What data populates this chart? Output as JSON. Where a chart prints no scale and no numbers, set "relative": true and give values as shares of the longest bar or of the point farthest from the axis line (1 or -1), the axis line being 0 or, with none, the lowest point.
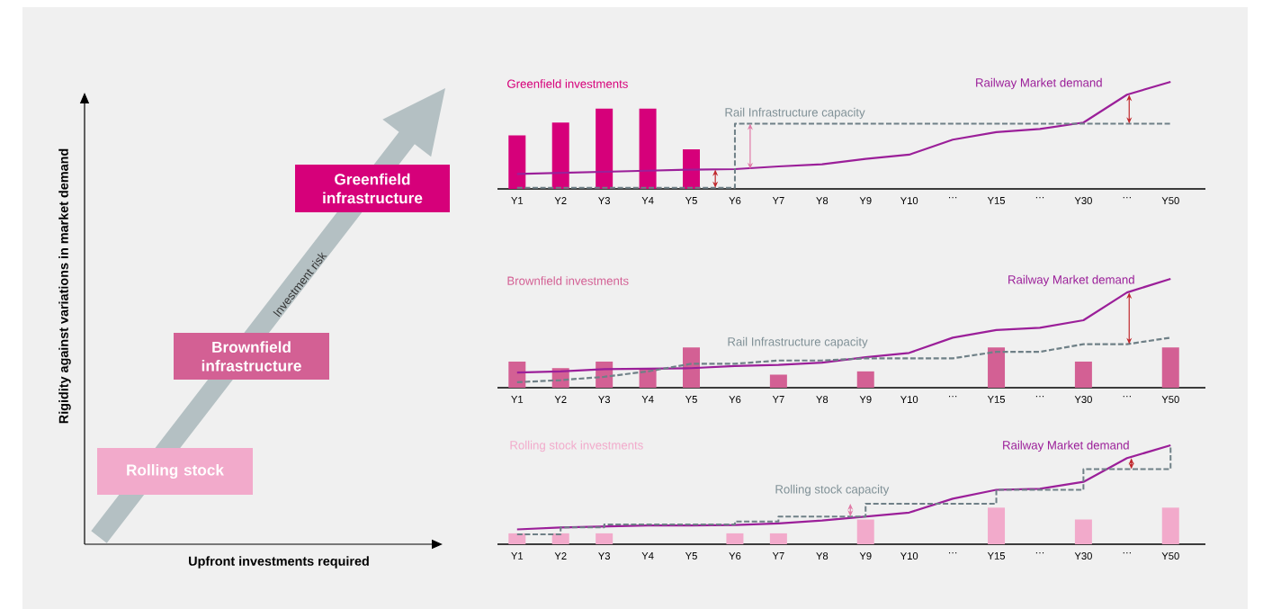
{
  "chart_data": [
    {
      "type": "other",
      "xlabel": "Upfront investments required",
      "ylabel": "Rigidity against variations in market demand",
      "annotations": [
        "Rolling stock",
        "Brownfield infrastructure",
        "Greenfield infrastructure",
        "Investment risk"
      ]
    },
    {
      "type": "bar",
      "relative": true,
      "categories": [
        "Y1",
        "Y2",
        "Y3",
        "Y4",
        "Y5",
        "Y6",
        "Y7",
        "Y8",
        "Y9",
        "Y10",
        "…",
        "Y15",
        "…",
        "Y30",
        "…",
        "Y50"
      ],
      "series": [
        {
          "type": "bar",
          "name": "Greenfield investments",
          "color": "#d6007a",
          "values": [
            0.5,
            0.62,
            0.75,
            0.75,
            0.37,
            null,
            null,
            null,
            null,
            null,
            null,
            null,
            null,
            null,
            null,
            null
          ]
        },
        {
          "type": "line",
          "name": "Railway Market demand",
          "color": "#9b1f99",
          "values": [
            0.14,
            0.15,
            0.16,
            0.17,
            0.18,
            0.185,
            0.21,
            0.23,
            0.28,
            0.32,
            0.46,
            0.53,
            0.56,
            0.62,
            0.88,
            1
          ]
        },
        {
          "type": "step",
          "name": "Rail Infrastructure capacity",
          "color": "#6f8087",
          "line_style": "dashed",
          "values": [
            0.01,
            0.01,
            0.01,
            0.01,
            0.01,
            0.61,
            0.61,
            0.61,
            0.61,
            0.61,
            0.61,
            0.61,
            0.61,
            0.61,
            0.61,
            0.61
          ]
        }
      ]
    },
    {
      "type": "bar",
      "relative": true,
      "categories": [
        "Y1",
        "Y2",
        "Y3",
        "Y4",
        "Y5",
        "Y6",
        "Y7",
        "Y8",
        "Y9",
        "Y10",
        "…",
        "Y15",
        "…",
        "Y30",
        "…",
        "Y50"
      ],
      "series": [
        {
          "type": "bar",
          "name": "Brownfield investments",
          "color": "#d36094",
          "values": [
            0.24,
            0.18,
            0.24,
            0.18,
            0.37,
            null,
            0.12,
            null,
            0.15,
            null,
            null,
            0.37,
            null,
            0.24,
            null,
            0.37
          ]
        },
        {
          "type": "line",
          "name": "Railway Market demand",
          "color": "#9b1f99",
          "values": [
            0.14,
            0.15,
            0.17,
            0.175,
            0.18,
            0.2,
            0.21,
            0.23,
            0.28,
            0.32,
            0.46,
            0.53,
            0.55,
            0.62,
            0.875,
            1
          ]
        },
        {
          "type": "line",
          "name": "Rail Infrastructure capacity",
          "color": "#6f8087",
          "line_style": "dashed",
          "values": [
            0.05,
            0.07,
            0.1,
            0.15,
            0.22,
            0.22,
            0.25,
            0.25,
            0.27,
            0.27,
            0.27,
            0.33,
            0.33,
            0.4,
            0.4,
            0.46
          ]
        }
      ]
    },
    {
      "type": "bar",
      "relative": true,
      "categories": [
        "Y1",
        "Y2",
        "Y3",
        "Y4",
        "Y5",
        "Y6",
        "Y7",
        "Y8",
        "Y9",
        "Y10",
        "…",
        "Y15",
        "…",
        "Y30",
        "…",
        "Y50"
      ],
      "series": [
        {
          "type": "bar",
          "name": "Rolling stock investments",
          "color": "#f2aacb",
          "values": [
            0.11,
            0.11,
            0.11,
            null,
            null,
            0.11,
            0.11,
            null,
            0.25,
            null,
            null,
            0.37,
            null,
            0.25,
            null,
            0.37
          ]
        },
        {
          "type": "line",
          "name": "Railway Market demand",
          "color": "#9b1f99",
          "values": [
            0.15,
            0.17,
            0.18,
            0.19,
            0.19,
            0.195,
            0.21,
            0.24,
            0.28,
            0.32,
            0.46,
            0.55,
            0.56,
            0.63,
            0.87,
            1
          ]
        },
        {
          "type": "step",
          "name": "Rolling stock capacity",
          "color": "#6f8087",
          "line_style": "dashed",
          "values": [
            0.1,
            0.17,
            0.2,
            0.2,
            0.2,
            0.23,
            0.28,
            0.28,
            0.41,
            0.41,
            0.41,
            0.55,
            0.55,
            0.76,
            0.76,
            1
          ]
        }
      ]
    }
  ]
}
